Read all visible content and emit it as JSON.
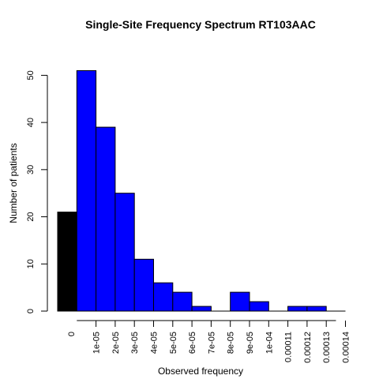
{
  "chart_data": {
    "type": "bar",
    "title": "Single-Site Frequency Spectrum RT103AAC",
    "xlabel": "Observed frequency",
    "ylabel": "Number of patients",
    "ylim": [
      0,
      54
    ],
    "yticks": [
      0,
      10,
      20,
      30,
      40,
      50
    ],
    "categories": [
      "0",
      "1e-05",
      "2e-05",
      "3e-05",
      "4e-05",
      "5e-05",
      "6e-05",
      "7e-05",
      "8e-05",
      "9e-05",
      "1e-04",
      "0.00011",
      "0.00012",
      "0.00013",
      "0.00014"
    ],
    "values": [
      21,
      51,
      39,
      25,
      11,
      6,
      4,
      1,
      0,
      4,
      2,
      0,
      1,
      1,
      0
    ],
    "colors": [
      "#000000",
      "#0000ff",
      "#0000ff",
      "#0000ff",
      "#0000ff",
      "#0000ff",
      "#0000ff",
      "#0000ff",
      "#0000ff",
      "#0000ff",
      "#0000ff",
      "#0000ff",
      "#0000ff",
      "#0000ff",
      "#0000ff"
    ],
    "grid": false,
    "legend": "none"
  }
}
